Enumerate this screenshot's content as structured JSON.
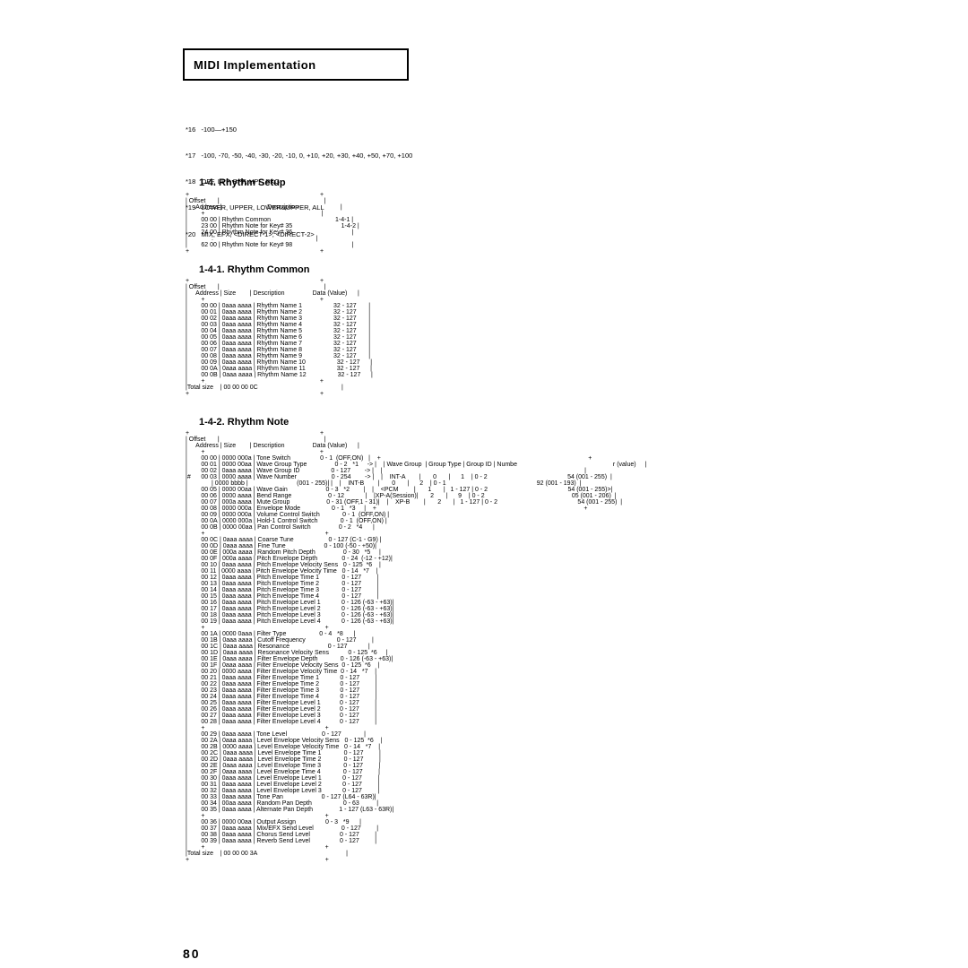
{
  "header": {
    "title": "MIDI Implementation"
  },
  "page_number": "80",
  "notes": [
    "*16   -100—+150",
    "*17   -100, -70, -50, -40, -30, -20, -10, 0, +10, +20, +30, +40, +50, +70, +100",
    "*18   OFF, LPF, BPF, HPF, PKG",
    "*19   LOWER, UPPER, LOWER&UPPER, ALL",
    "*20   MIX, EFX, <DIRECT-1>, <DIRECT-2>"
  ],
  "sections": {
    "s1": "1-4. Rhythm  Setup",
    "s2": "1-4-1. Rhythm  Common",
    "s3": "1-4-2. Rhythm  Note"
  },
  "table1": "+                                                                           +\n| Offset       |                                                            |\n|     Address |                          Description                        |\n|        +                                                                   |\n|        00 00 | Rhythm Common                                     1-4-1 |\n|        23 00 | Rhythm Note for Key# 35                            1-4-2 |\n|        24 00 | Rhythm Note for Key# 36                                  |\n|              :                                                           |\n|        62 00 | Rhythm Note for Key# 98                                  |\n+                                                                           +",
  "table2": "+                                                                           +\n| Offset       |                                                            |\n|     Address | Size        | Description                Data (Value)      |\n|        +                                                                  +\n|        00 00 | 0aaa aaaa | Rhythm Name 1                  32 - 127       |\n|        00 01 | 0aaa aaaa | Rhythm Name 2                  32 - 127       |\n|        00 02 | 0aaa aaaa | Rhythm Name 3                  32 - 127       |\n|        00 03 | 0aaa aaaa | Rhythm Name 4                  32 - 127       |\n|        00 04 | 0aaa aaaa | Rhythm Name 5                  32 - 127       |\n|        00 05 | 0aaa aaaa | Rhythm Name 6                  32 - 127       |\n|        00 06 | 0aaa aaaa | Rhythm Name 7                  32 - 127       |\n|        00 07 | 0aaa aaaa | Rhythm Name 8                  32 - 127       |\n|        00 08 | 0aaa aaaa | Rhythm Name 9                  32 - 127       |\n|        00 09 | 0aaa aaaa | Rhythm Name 10                  32 - 127      |\n|        00 0A | 0aaa aaaa | Rhythm Name 11                  32 - 127      |\n|        00 0B | 0aaa aaaa | Rhythm Name 12                  32 - 127      |\n|        +                                                                  +\n|Total size    | 00 00 00 0C                                                |\n+                                                                           +",
  "table3": "+                                                                           +\n| Offset       |                                                            |\n|     Address | Size        | Description                Data (Value)      |\n|        +                                                                  +\n|        00 00 | 0000 000a | Tone Switch                 0 - 1  (OFF,ON)   |    +                                                                                                                       +\n|        00 01 | 0000 00aa | Wave Group Type                0 - 2   *1     -> |    | Wave Group  | Group Type | Group ID | Numbe                                                       r (value)     |\n|        00 02 | 0aaa aaaa | Wave Group ID                  0 - 127        -> |    |                                                                                                                    |\n|#      00 03 | 0000 aaaa | Wave Number                    0 - 254        -> |    |    INT-A        |       0       |      1    | 0 - 2                                              54 (001 - 255)  |\n|              | 0000 bbbb |                            (001 - 255)| |    |    INT-B        |       0       |      2    | 0 - 1                                                    92 (001 - 193)  |\n|        00 05 | 0000 00aa | Wave Gain                      0 - 3   *2        |    |    <PCM         |       1       |   1 - 127 | 0 - 2                                              54 (001 - 255)>|\n|        00 06 | 0000 aaaa | Bend Range                     0 - 12            |    |XP-A(Session)|       2       |      9    | 0 - 2                                                  05 (001 - 206)  |\n|        00 07 | 000a aaaa | Mute Group                     0 - 31 (OFF,1 - 31)|    |    XP-B        |       2       |   1 - 127 | 0 - 2                                              54 (001 - 255)  |\n|        00 08 | 0000 000a | Envelope Mode                  0 - 1   *3     |    +                                                                                                                       +\n|        00 09 | 0000 000a | Volume Control Switch             0 - 1  (OFF,ON) |\n|        00 0A | 0000 000a | Hold-1 Control Switch             0 - 1  (OFF,ON) |\n|        00 0B | 0000 00aa | Pan Control Switch                0 - 2   *4      |\n|        +                                                                     +\n|        00 0C | 0aaa aaaa | Coarse Tune                    0 - 127 (C-1 - G9) |\n|        00 0D | 0aaa aaaa | Fine Tune                      0 - 100 (-50 - +50)|\n|        00 0E | 000a aaaa | Random Pitch Depth                0 - 30   *5     |\n|        00 0F | 000a aaaa | Pitch Envelope Depth              0 - 24  (-12 - +12)|\n|        00 10 | 0aaa aaaa | Pitch Envelope Velocity Sens   0 - 125  *6    |\n|        00 11 | 0000 aaaa | Pitch Envelope Velocity Time   0 - 14   *7    |\n|        00 12 | 0aaa aaaa | Pitch Envelope Time 1             0 - 127         |\n|        00 13 | 0aaa aaaa | Pitch Envelope Time 2             0 - 127         |\n|        00 14 | 0aaa aaaa | Pitch Envelope Time 3             0 - 127         |\n|        00 15 | 0aaa aaaa | Pitch Envelope Time 4             0 - 127         |\n|        00 16 | 0aaa aaaa | Pitch Envelope Level 1            0 - 126 (-63 - +63)|\n|        00 17 | 0aaa aaaa | Pitch Envelope Level 2            0 - 126 (-63 - +63)|\n|        00 18 | 0aaa aaaa | Pitch Envelope Level 3            0 - 126 (-63 - +63)|\n|        00 19 | 0aaa aaaa | Pitch Envelope Level 4            0 - 126 (-63 - +63)|\n|        +                                                                     +\n|        00 1A | 0000 0aaa | Filter Type                   0 - 4   *8      |\n|        00 1B | 0aaa aaaa | Cutoff Frequency                  0 - 127         |\n|        00 1C | 0aaa aaaa | Resonance                      0 - 127            |\n|        00 1D | 0aaa aaaa | Resonance Velocity Sens           0 - 125  *6     |\n|        00 1E | 0aaa aaaa | Filter Envelope Depth             0 - 126 (-63 - +63)|\n|        00 1F | 0aaa aaaa | Filter Envelope Velocity Sens  0 - 125  *6    |\n|        00 20 | 0000 aaaa | Filter Envelope Velocity Time  0 - 14   *7    |\n|        00 21 | 0aaa aaaa | Filter Envelope Time 1            0 - 127         |\n|        00 22 | 0aaa aaaa | Filter Envelope Time 2            0 - 127         |\n|        00 23 | 0aaa aaaa | Filter Envelope Time 3            0 - 127         |\n|        00 24 | 0aaa aaaa | Filter Envelope Time 4            0 - 127         |\n|        00 25 | 0aaa aaaa | Filter Envelope Level 1           0 - 127         |\n|        00 26 | 0aaa aaaa | Filter Envelope Level 2           0 - 127         |\n|        00 27 | 0aaa aaaa | Filter Envelope Level 3           0 - 127         |\n|        00 28 | 0aaa aaaa | Filter Envelope Level 4           0 - 127         |\n|        +                                                                     +\n|        00 29 | 0aaa aaaa | Tone Level                    0 - 127             |\n|        00 2A | 0aaa aaaa | Level Envelope Velocity Sens   0 - 125  *6    |\n|        00 2B | 0000 aaaa | Level Envelope Velocity Time   0 - 14   *7    |\n|        00 2C | 0aaa aaaa | Level Envelope Time 1             0 - 127         |\n|        00 2D | 0aaa aaaa | Level Envelope Time 2             0 - 127         |\n|        00 2E | 0aaa aaaa | Level Envelope Time 3             0 - 127         |\n|        00 2F | 0aaa aaaa | Level Envelope Time 4             0 - 127         |\n|        00 30 | 0aaa aaaa | Level Envelope Level 1            0 - 127         |\n|        00 31 | 0aaa aaaa | Level Envelope Level 2            0 - 127         |\n|        00 32 | 0aaa aaaa | Level Envelope Level 3            0 - 127         |\n|        00 33 | 0aaa aaaa | Tone Pan                      0 - 127 (L64 - 63R)|\n|        00 34 | 00aa aaaa | Random Pan Depth                  0 - 63          |\n|        00 35 | 0aaa aaaa | Alternate Pan Depth               1 - 127 (L63 - 63R)|\n|        +                                                                     +\n|        00 36 | 0000 00aa | Output Assign                 0 - 3   *9      |\n|        00 37 | 0aaa aaaa | Mix/EFX Send Level                0 - 127         |\n|        00 38 | 0aaa aaaa | Chorus Send Level                 0 - 127         |\n|        00 39 | 0aaa aaaa | Reverb Send Level                 0 - 127         |\n|        +                                                                     +\n|Total size    | 00 00 00 3A                                                   |\n+                                                                              +"
}
